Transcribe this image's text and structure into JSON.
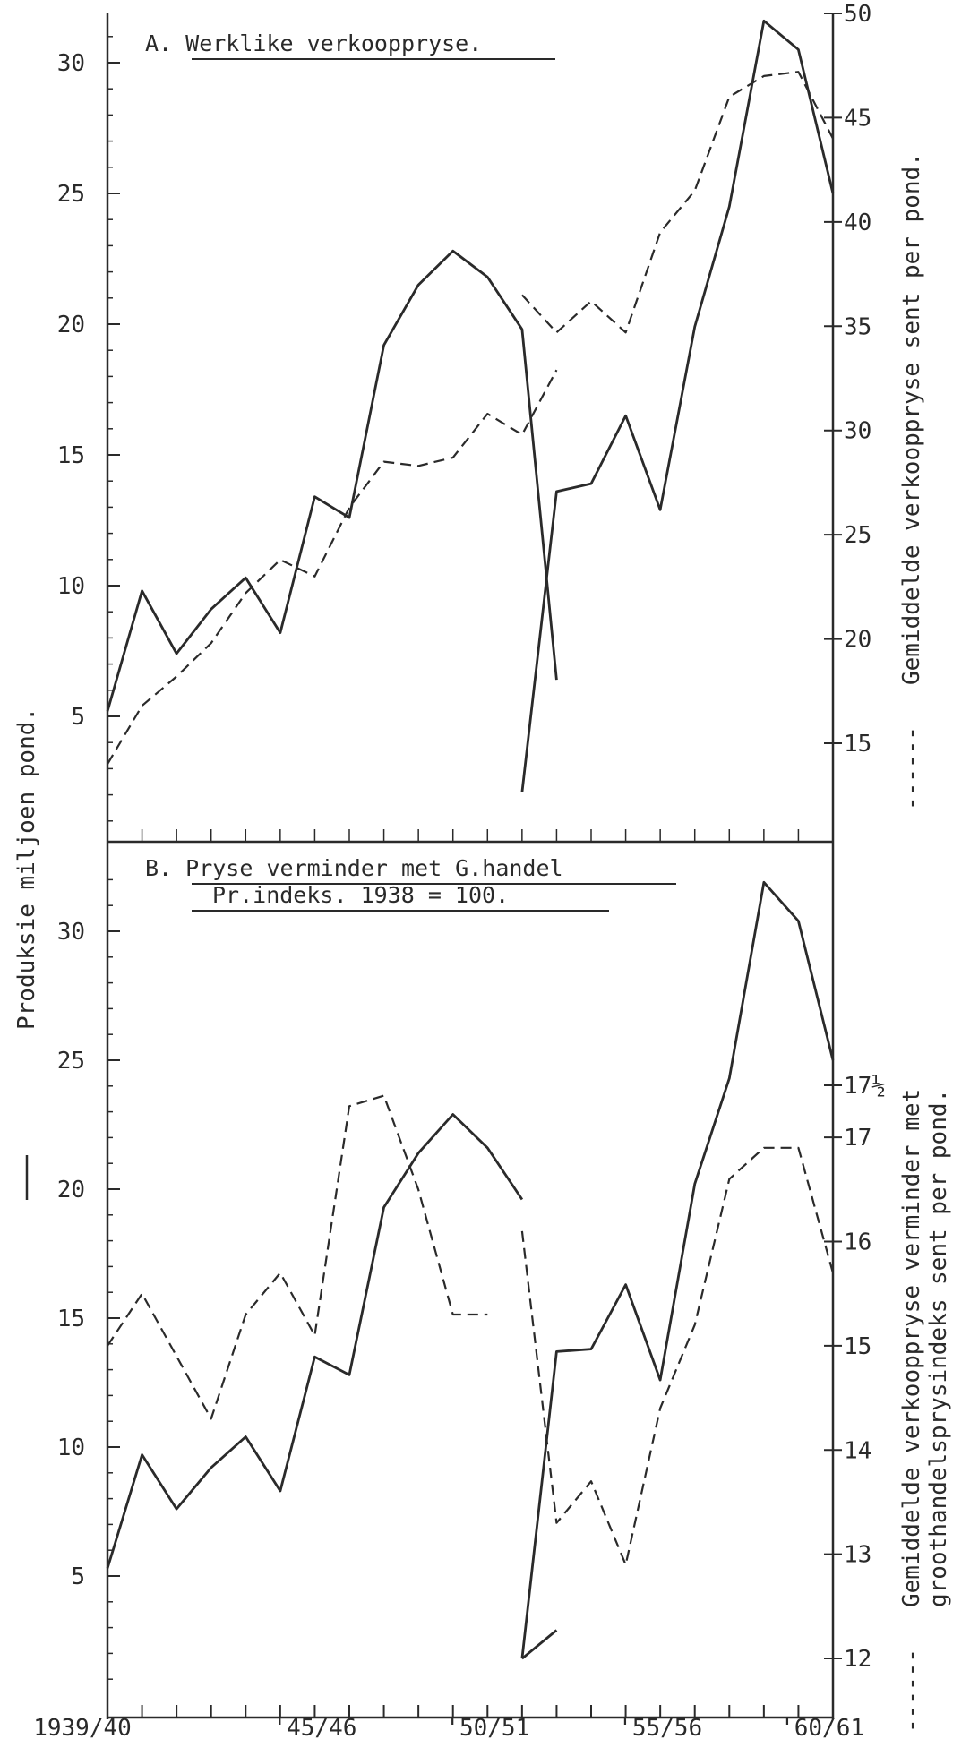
{
  "chart_data": [
    {
      "panel": "A",
      "type": "line",
      "title": "A. Werklike verkooppryse.",
      "x_tick_labels": [
        "1939/40",
        "'45/46",
        "'50/51",
        "'55/56",
        "'60/61"
      ],
      "ylabel_left": "Produksie miljoen pond.",
      "ylabel_right": "Gemiddelde verkooppryse sent per pond.",
      "y_left_ticks": [
        "5",
        "10",
        "15",
        "20",
        "25",
        "30"
      ],
      "y_right_ticks": [
        "15",
        "20",
        "25",
        "30",
        "35",
        "40",
        "45",
        "50"
      ],
      "ylim_left": [
        1.8,
        33.5
      ],
      "ylim_right": [
        10.5,
        50
      ],
      "series": [
        {
          "axis": "left",
          "style": "solid",
          "segments": [
            {
              "x": [
                0,
                1,
                2,
                3,
                4,
                5,
                6,
                7,
                8,
                9,
                10,
                11,
                12,
                13
              ],
              "values": [
                5.2,
                9.8,
                7.4,
                9.1,
                10.3,
                8.2,
                13.4,
                12.6,
                19.2,
                21.5,
                22.8,
                21.8,
                19.8,
                6.4
              ]
            },
            {
              "x": [
                12,
                13,
                14,
                15,
                16,
                17,
                18,
                19,
                20,
                21
              ],
              "values": [
                2.1,
                13.6,
                13.9,
                16.5,
                12.9,
                19.9,
                24.5,
                31.6,
                30.5,
                25.0
              ]
            }
          ]
        },
        {
          "axis": "right",
          "style": "dashed",
          "segments": [
            {
              "x": [
                0,
                1,
                2,
                3,
                4,
                5,
                6,
                7,
                8,
                9,
                10,
                11,
                12,
                13
              ],
              "values": [
                14.0,
                16.8,
                18.2,
                19.8,
                22.2,
                23.8,
                23.0,
                26.3,
                28.5,
                28.3,
                28.7,
                30.8,
                29.8,
                32.9
              ]
            },
            {
              "x": [
                12,
                13,
                14,
                15,
                16,
                17,
                18,
                19,
                20,
                21
              ],
              "values": [
                36.5,
                34.7,
                36.2,
                34.7,
                39.5,
                41.5,
                46.0,
                47.0,
                47.2,
                44.0
              ]
            }
          ]
        }
      ]
    },
    {
      "panel": "B",
      "type": "line",
      "title_lines": [
        "B. Pryse verminder met G.handel",
        "Pr.indeks.  1938 = 100."
      ],
      "x_tick_labels": [
        "1939/40",
        "'45/46",
        "'50/51",
        "'55/56",
        "'60/61"
      ],
      "ylabel_left": "Produksie miljoen pond.",
      "ylabel_right_lines": [
        "Gemiddelde verkooppryse verminder met",
        "groothandelsprysindeks sent per pond."
      ],
      "y_left_ticks": [
        "5",
        "10",
        "15",
        "20",
        "25",
        "30"
      ],
      "y_right_ticks": [
        "12",
        "13",
        "14",
        "15",
        "16",
        "17",
        "17½"
      ],
      "ylim_left": [
        0.8,
        34.5
      ],
      "ylim_right": [
        11.7,
        18.7
      ],
      "series": [
        {
          "axis": "left",
          "style": "solid",
          "segments": [
            {
              "x": [
                0,
                1,
                2,
                3,
                4,
                5,
                6,
                7,
                8,
                9,
                10,
                11,
                12
              ],
              "values": [
                5.3,
                9.7,
                7.6,
                9.2,
                10.4,
                8.3,
                13.5,
                12.8,
                19.3,
                21.4,
                22.9,
                21.6,
                19.6
              ]
            },
            {
              "x": [
                12,
                13,
                14,
                15,
                16,
                17,
                18,
                19,
                20,
                21
              ],
              "values": [
                1.8,
                13.7,
                13.8,
                16.3,
                12.6,
                20.2,
                24.3,
                31.9,
                30.4,
                25.0
              ]
            },
            {
              "x": [
                12,
                13
              ],
              "values": [
                1.8,
                2.9
              ]
            }
          ]
        },
        {
          "axis": "right",
          "style": "dashed",
          "segments": [
            {
              "x": [
                0,
                1,
                2,
                3,
                4,
                5,
                6,
                7,
                8,
                9,
                10,
                11
              ],
              "values": [
                15.0,
                15.5,
                14.9,
                14.3,
                15.3,
                15.7,
                15.1,
                17.3,
                17.4,
                16.5,
                15.3,
                15.3
              ]
            },
            {
              "x": [
                12,
                13,
                14,
                15,
                16,
                17,
                18,
                19,
                20,
                21
              ],
              "values": [
                16.1,
                13.3,
                13.7,
                12.9,
                14.4,
                15.2,
                16.6,
                16.9,
                16.9,
                15.7
              ]
            }
          ]
        }
      ]
    }
  ],
  "colors": {
    "ink": "#2a2a2a",
    "paper": "#ffffff"
  },
  "legend": {
    "solid_marker": "—",
    "dashed_marker": "------"
  }
}
